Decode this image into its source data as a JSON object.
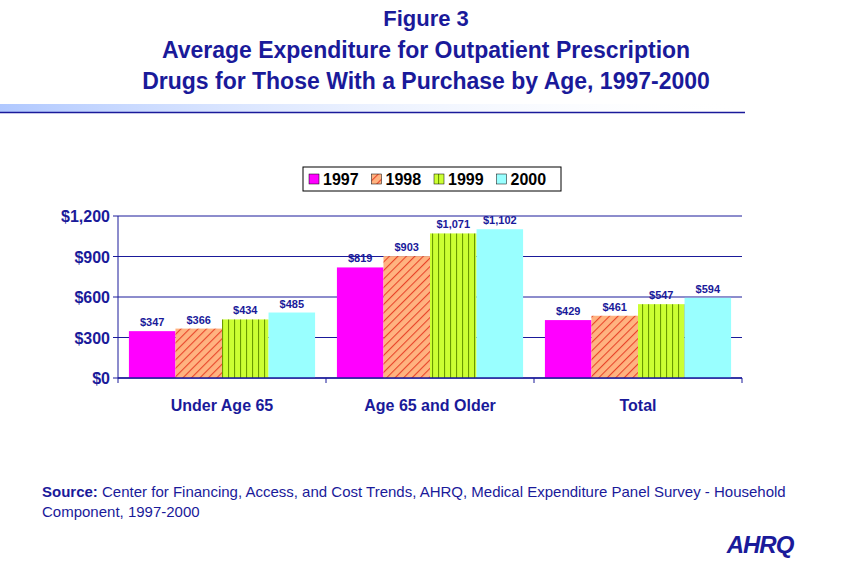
{
  "chart_data": {
    "type": "bar",
    "title": "Figure 3",
    "subtitle": [
      "Average Expenditure for Outpatient Prescription",
      "Drugs for Those With a Purchase by Age, 1997-2000"
    ],
    "categories": [
      "Under Age 65",
      "Age 65 and Older",
      "Total"
    ],
    "series": [
      {
        "name": "1997",
        "color": "#ff00ff",
        "values": [
          347,
          819,
          429
        ],
        "value_labels": [
          "$347",
          "$819",
          "$429"
        ]
      },
      {
        "name": "1998",
        "color": "#ffb380",
        "values": [
          366,
          903,
          461
        ],
        "value_labels": [
          "$366",
          "$903",
          "$461"
        ]
      },
      {
        "name": "1999",
        "color": "#ccff33",
        "values": [
          434,
          1071,
          547
        ],
        "value_labels": [
          "$434",
          "$1,071",
          "$547"
        ]
      },
      {
        "name": "2000",
        "color": "#99ffff",
        "values": [
          485,
          1102,
          594
        ],
        "value_labels": [
          "$485",
          "$1,102",
          "$594"
        ]
      }
    ],
    "ylim": [
      0,
      1200
    ],
    "yticks": [
      {
        "value": 0,
        "label": "$0"
      },
      {
        "value": 300,
        "label": "$300"
      },
      {
        "value": 600,
        "label": "$600"
      },
      {
        "value": 900,
        "label": "$900"
      },
      {
        "value": 1200,
        "label": "$1,200"
      }
    ],
    "grid": true,
    "legend": "top",
    "data_labels": true,
    "source_label": "Source:",
    "source": "Center for Financing, Access, and Cost Trends, AHRQ, Medical Expenditure Panel Survey - Household Component, 1997-2000",
    "logo": "AHRQ"
  }
}
